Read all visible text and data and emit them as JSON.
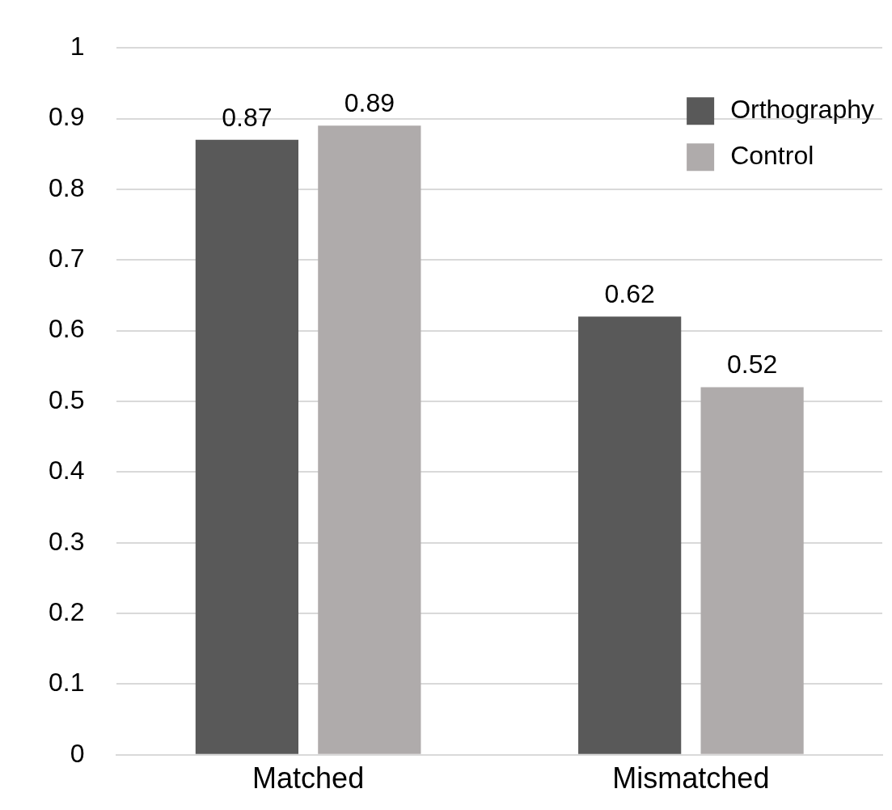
{
  "chart_data": {
    "type": "bar",
    "categories": [
      "Matched",
      "Mismatched"
    ],
    "series": [
      {
        "name": "Orthography",
        "color": "#595959",
        "values": [
          0.87,
          0.62
        ]
      },
      {
        "name": "Control",
        "color": "#afabab",
        "values": [
          0.89,
          0.52
        ]
      }
    ],
    "ylim": [
      0,
      1
    ],
    "yticks": [
      0,
      0.1,
      0.2,
      0.3,
      0.4,
      0.5,
      0.6,
      0.7,
      0.8,
      0.9,
      1
    ],
    "grid": "y",
    "legend": "top right",
    "data_labels": true
  }
}
